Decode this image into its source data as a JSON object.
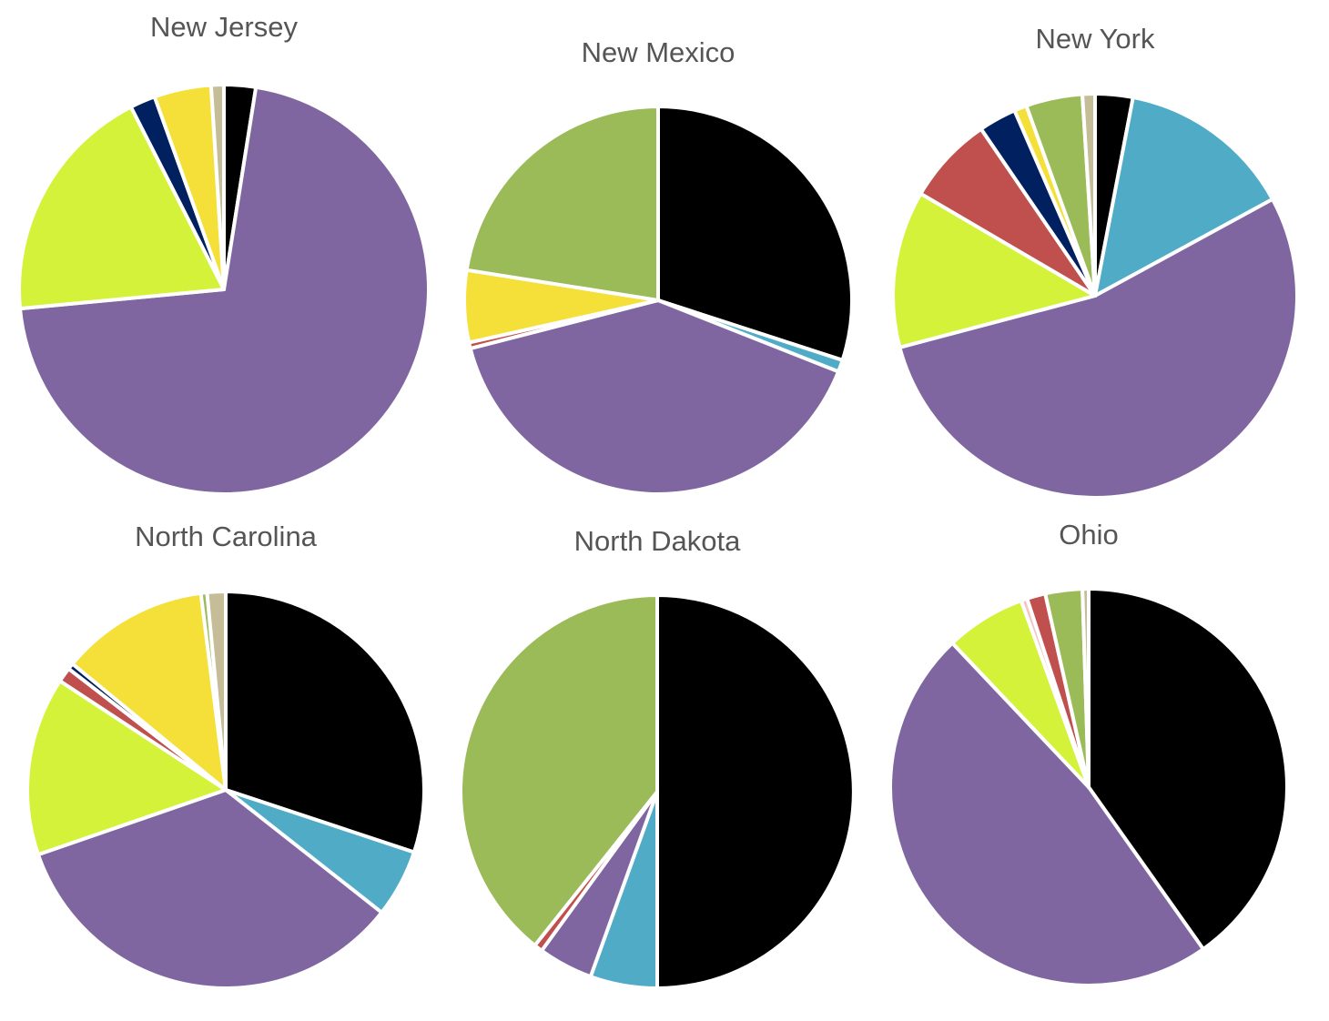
{
  "chart_data": [
    {
      "type": "pie",
      "title": "New Jersey",
      "values": [
        2.5,
        71,
        19,
        2,
        4.5,
        1
      ],
      "colors": [
        "#000000",
        "#7f66a0",
        "#d4f23a",
        "#002060",
        "#f5e03a",
        "#c4bd97"
      ]
    },
    {
      "type": "pie",
      "title": "New Mexico",
      "values": [
        30,
        1,
        40,
        0.5,
        6,
        22.5
      ],
      "colors": [
        "#000000",
        "#4fabc6",
        "#7f66a0",
        "#c0504d",
        "#f5e03a",
        "#9bbb59"
      ]
    },
    {
      "type": "pie",
      "title": "New York",
      "values": [
        3,
        14,
        53.6,
        12.5,
        7,
        3,
        1,
        4.5,
        1
      ],
      "colors": [
        "#000000",
        "#4fabc6",
        "#7f66a0",
        "#d4f23a",
        "#c0504d",
        "#002060",
        "#f5e03a",
        "#9bbb59",
        "#c4bd97"
      ]
    },
    {
      "type": "pie",
      "title": "North Carolina",
      "values": [
        30,
        5.5,
        34,
        14.5,
        1.2,
        0.5,
        12,
        0.5,
        1.5
      ],
      "colors": [
        "#000000",
        "#4fabc6",
        "#7f66a0",
        "#d4f23a",
        "#c0504d",
        "#002060",
        "#f5e03a",
        "#9bbb59",
        "#c4bd97"
      ]
    },
    {
      "type": "pie",
      "title": "North Dakota",
      "values": [
        50,
        5.5,
        4.5,
        0.7,
        39.3
      ],
      "colors": [
        "#000000",
        "#4fabc6",
        "#7f66a0",
        "#c0504d",
        "#9bbb59"
      ]
    },
    {
      "type": "pie",
      "title": "Ohio",
      "values": [
        40,
        47.5,
        6.5,
        0.5,
        1.5,
        3,
        0.5
      ],
      "colors": [
        "#000000",
        "#7f66a0",
        "#d4f23a",
        "#f2c4c4",
        "#c0504d",
        "#9bbb59",
        "#c4bd97"
      ]
    }
  ]
}
